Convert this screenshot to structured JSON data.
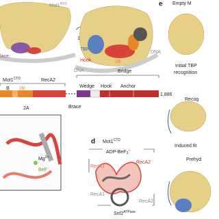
{
  "panel_left": {
    "label_top": {
      "base": "Mot1",
      "sup": "NTD"
    },
    "label_side": "lace"
  },
  "rotation": "180°",
  "panel_middle": {
    "tbp": "TBP",
    "hook": "Hook",
    "twob": "2B",
    "dna_left": "DNA",
    "dna_right": "DNA"
  },
  "panel_e": {
    "letter": "e",
    "states": [
      "Empty M",
      "Initial TBP",
      "recognition",
      "Recog",
      "Induced fit",
      "Prehyd"
    ]
  },
  "domain_map": {
    "title": {
      "base": "Mot1",
      "sup": "CTD"
    },
    "reca2": "RecA2",
    "bridge": "Bridge",
    "wedge": "Wedge",
    "hook": "Hook",
    "anchor": "Anchor",
    "b": "B",
    "twob": "2B",
    "twoa": "2A",
    "brace": "Brace",
    "end": "1,886"
  },
  "panel_zoom": {
    "mg": {
      "base": "Mg",
      "sup": "2+"
    },
    "bef": "BeF"
  },
  "panel_d": {
    "letter": "d",
    "title": {
      "base": "Mot1",
      "sup": "CTD"
    },
    "ligand": {
      "base": "ADP-BeF",
      "sub": "3",
      "sup": "−"
    },
    "reca1_top": "RecA1",
    "reca2_top": "RecA2",
    "reca1_bottom": "RecA1",
    "reca2_bottom": "RecA2",
    "snf2": {
      "base": "Snf2",
      "sup": "ATPase"
    }
  }
}
